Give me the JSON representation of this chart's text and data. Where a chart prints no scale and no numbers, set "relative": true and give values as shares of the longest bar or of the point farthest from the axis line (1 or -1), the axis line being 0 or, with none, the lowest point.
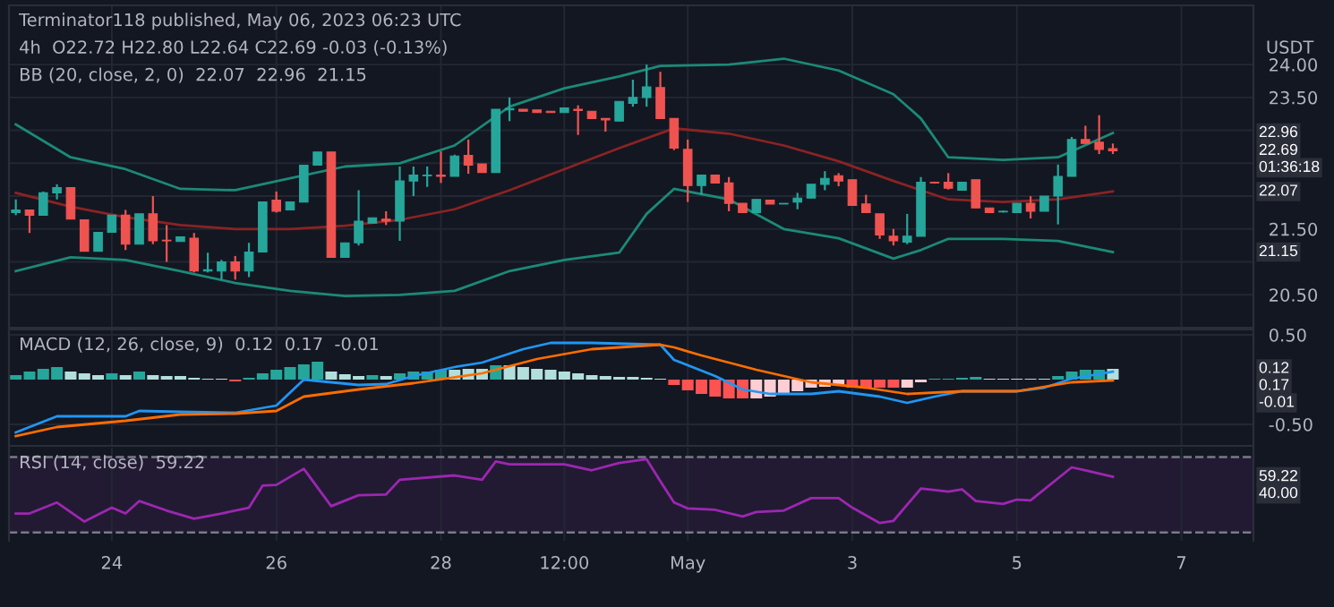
{
  "chart_data": [
    {
      "type": "candlestick",
      "title": "Terminator118 published, May 06, 2023 06:23 UTC",
      "ylabel": "USDT",
      "annotations": [
        "4h  O22.72 H22.80 L22.64 C22.69 -0.03 (-0.13%)",
        "BB (20, close, 2, 0)  22.07  22.96  21.15",
        {
          "text": "22.96",
          "y": 22.96
        },
        {
          "text": "22.69",
          "y": 22.69
        },
        "01:36:18",
        {
          "text": "22.07",
          "y": 22.07
        },
        {
          "text": "21.15",
          "y": 21.15
        }
      ],
      "x": [
        "2023-04-22T20:00",
        "2023-04-23T00:00",
        "2023-04-23T04:00",
        "2023-04-23T08:00",
        "2023-04-23T12:00",
        "2023-04-23T16:00",
        "2023-04-23T20:00",
        "2023-04-24T00:00",
        "2023-04-24T04:00",
        "2023-04-24T08:00",
        "2023-04-24T12:00",
        "2023-04-24T16:00",
        "2023-04-24T20:00",
        "2023-04-25T00:00",
        "2023-04-25T04:00",
        "2023-04-25T08:00",
        "2023-04-25T12:00",
        "2023-04-25T16:00",
        "2023-04-25T20:00",
        "2023-04-26T00:00",
        "2023-04-26T04:00",
        "2023-04-26T08:00",
        "2023-04-26T12:00",
        "2023-04-26T16:00",
        "2023-04-26T20:00",
        "2023-04-27T00:00",
        "2023-04-27T04:00",
        "2023-04-27T08:00",
        "2023-04-27T12:00",
        "2023-04-27T16:00",
        "2023-04-27T20:00",
        "2023-04-28T00:00",
        "2023-04-28T04:00",
        "2023-04-28T08:00",
        "2023-04-28T12:00",
        "2023-04-28T16:00",
        "2023-04-28T20:00",
        "2023-04-29T00:00",
        "2023-04-29T04:00",
        "2023-04-29T08:00",
        "2023-04-29T12:00",
        "2023-04-29T16:00",
        "2023-04-29T20:00",
        "2023-04-30T00:00",
        "2023-04-30T04:00",
        "2023-04-30T08:00",
        "2023-04-30T12:00",
        "2023-04-30T16:00",
        "2023-04-30T20:00",
        "2023-05-01T00:00",
        "2023-05-01T04:00",
        "2023-05-01T08:00",
        "2023-05-01T12:00",
        "2023-05-01T16:00",
        "2023-05-01T20:00",
        "2023-05-02T00:00",
        "2023-05-02T04:00",
        "2023-05-02T08:00",
        "2023-05-02T12:00",
        "2023-05-02T16:00",
        "2023-05-02T20:00",
        "2023-05-03T00:00",
        "2023-05-03T04:00",
        "2023-05-03T08:00",
        "2023-05-03T12:00",
        "2023-05-03T16:00",
        "2023-05-03T20:00",
        "2023-05-04T00:00",
        "2023-05-04T04:00",
        "2023-05-04T08:00",
        "2023-05-04T12:00",
        "2023-05-04T16:00",
        "2023-05-04T20:00",
        "2023-05-05T00:00",
        "2023-05-05T04:00",
        "2023-05-05T08:00",
        "2023-05-05T12:00",
        "2023-05-05T16:00",
        "2023-05-05T20:00",
        "2023-05-06T00:00",
        "2023-05-06T04:00"
      ],
      "ohlc": [
        [
          21.75,
          21.95,
          21.71,
          21.79
        ],
        [
          21.79,
          21.79,
          21.44,
          21.71
        ],
        [
          21.71,
          22.07,
          21.71,
          22.05
        ],
        [
          22.05,
          22.18,
          21.95,
          22.13
        ],
        [
          22.13,
          22.13,
          21.65,
          21.65
        ],
        [
          21.64,
          21.64,
          21.16,
          21.16
        ],
        [
          21.16,
          21.45,
          21.16,
          21.45
        ],
        [
          21.45,
          21.71,
          21.45,
          21.71
        ],
        [
          21.71,
          21.79,
          21.18,
          21.27
        ],
        [
          21.27,
          21.73,
          21.27,
          21.73
        ],
        [
          21.73,
          22.0,
          21.27,
          21.32
        ],
        [
          21.33,
          21.56,
          21.0,
          21.32
        ],
        [
          21.31,
          21.38,
          21.31,
          21.38
        ],
        [
          21.36,
          21.44,
          20.84,
          20.86
        ],
        [
          20.86,
          21.14,
          20.84,
          20.88
        ],
        [
          20.86,
          21.03,
          20.73,
          21.0
        ],
        [
          21.0,
          21.09,
          20.73,
          20.86
        ],
        [
          20.86,
          21.29,
          20.77,
          21.15
        ],
        [
          21.15,
          21.91,
          21.15,
          21.91
        ],
        [
          21.94,
          22.07,
          21.75,
          21.77
        ],
        [
          21.79,
          21.91,
          21.79,
          21.91
        ],
        [
          21.91,
          22.47,
          21.91,
          22.47
        ],
        [
          22.47,
          22.67,
          22.47,
          22.67
        ],
        [
          22.67,
          22.67,
          21.07,
          21.07
        ],
        [
          21.07,
          21.29,
          21.07,
          21.29
        ],
        [
          21.29,
          22.09,
          21.25,
          21.62
        ],
        [
          21.59,
          21.67,
          21.59,
          21.67
        ],
        [
          21.65,
          21.77,
          21.56,
          21.62
        ],
        [
          21.62,
          22.45,
          21.32,
          22.23
        ],
        [
          22.23,
          22.45,
          22.0,
          22.32
        ],
        [
          22.31,
          22.45,
          22.14,
          22.32
        ],
        [
          22.32,
          22.68,
          22.2,
          22.3
        ],
        [
          22.3,
          22.63,
          22.3,
          22.61
        ],
        [
          22.62,
          22.86,
          22.34,
          22.47
        ],
        [
          22.49,
          22.49,
          22.36,
          22.36
        ],
        [
          22.36,
          23.32,
          22.36,
          23.32
        ],
        [
          23.31,
          23.5,
          23.14,
          23.33
        ],
        [
          23.32,
          23.32,
          23.29,
          23.29
        ],
        [
          23.31,
          23.31,
          23.27,
          23.27
        ],
        [
          23.29,
          23.29,
          23.27,
          23.27
        ],
        [
          23.27,
          23.34,
          23.27,
          23.34
        ],
        [
          23.32,
          23.38,
          22.93,
          23.3
        ],
        [
          23.29,
          23.29,
          23.18,
          23.18
        ],
        [
          23.18,
          23.18,
          22.98,
          23.16
        ],
        [
          23.14,
          23.44,
          23.14,
          23.44
        ],
        [
          23.41,
          23.77,
          23.36,
          23.5
        ],
        [
          23.5,
          24.0,
          23.36,
          23.66
        ],
        [
          23.65,
          23.89,
          23.18,
          23.18
        ],
        [
          23.18,
          23.18,
          22.7,
          22.73
        ],
        [
          22.71,
          22.86,
          21.91,
          22.16
        ],
        [
          22.16,
          22.32,
          22.02,
          22.32
        ],
        [
          22.32,
          22.32,
          22.2,
          22.2
        ],
        [
          22.2,
          22.29,
          21.77,
          21.89
        ],
        [
          21.89,
          21.89,
          21.75,
          21.75
        ],
        [
          21.75,
          21.95,
          21.75,
          21.95
        ],
        [
          21.94,
          21.94,
          21.88,
          21.88
        ],
        [
          21.88,
          21.89,
          21.88,
          21.89
        ],
        [
          21.91,
          22.05,
          21.8,
          21.97
        ],
        [
          21.97,
          22.18,
          21.97,
          22.18
        ],
        [
          22.18,
          22.38,
          22.09,
          22.27
        ],
        [
          22.31,
          22.35,
          22.15,
          22.23
        ],
        [
          22.25,
          22.25,
          21.86,
          21.86
        ],
        [
          21.88,
          22.02,
          21.75,
          21.75
        ],
        [
          21.73,
          21.73,
          21.35,
          21.41
        ],
        [
          21.39,
          21.5,
          21.25,
          21.32
        ],
        [
          21.3,
          21.73,
          21.27,
          21.39
        ],
        [
          21.39,
          22.29,
          21.39,
          22.21
        ],
        [
          22.21,
          22.22,
          22.19,
          22.2
        ],
        [
          22.21,
          22.35,
          22.1,
          22.12
        ],
        [
          22.09,
          22.21,
          22.09,
          22.21
        ],
        [
          22.25,
          22.25,
          21.82,
          21.82
        ],
        [
          21.82,
          21.82,
          21.75,
          21.75
        ],
        [
          21.76,
          21.78,
          21.75,
          21.77
        ],
        [
          21.75,
          21.89,
          21.75,
          21.89
        ],
        [
          21.89,
          22.0,
          21.66,
          21.77
        ],
        [
          21.77,
          22.0,
          21.77,
          22.0
        ],
        [
          22.0,
          22.48,
          21.57,
          22.3
        ],
        [
          22.3,
          22.9,
          22.3,
          22.86
        ],
        [
          22.86,
          23.07,
          22.8,
          22.8
        ],
        [
          22.82,
          23.23,
          22.64,
          22.71
        ],
        [
          22.72,
          22.8,
          22.64,
          22.69
        ]
      ],
      "colors": [
        "#26a69a",
        "#ef5350",
        "#26a69a",
        "#26a69a",
        "#ef5350",
        "#ef5350",
        "#26a69a",
        "#26a69a",
        "#ef5350",
        "#26a69a",
        "#ef5350",
        "#ef5350",
        "#26a69a",
        "#ef5350",
        "#26a69a",
        "#26a69a",
        "#ef5350",
        "#26a69a",
        "#26a69a",
        "#ef5350",
        "#26a69a",
        "#26a69a",
        "#26a69a",
        "#ef5350",
        "#26a69a",
        "#26a69a",
        "#26a69a",
        "#ef5350",
        "#26a69a",
        "#26a69a",
        "#26a69a",
        "#ef5350",
        "#26a69a",
        "#ef5350",
        "#ef5350",
        "#26a69a",
        "#26a69a",
        "#ef5350",
        "#ef5350",
        "#ef5350",
        "#26a69a",
        "#ef5350",
        "#ef5350",
        "#ef5350",
        "#26a69a",
        "#26a69a",
        "#26a69a",
        "#ef5350",
        "#ef5350",
        "#ef5350",
        "#26a69a",
        "#ef5350",
        "#ef5350",
        "#ef5350",
        "#26a69a",
        "#ef5350",
        "#26a69a",
        "#26a69a",
        "#26a69a",
        "#26a69a",
        "#ef5350",
        "#ef5350",
        "#ef5350",
        "#ef5350",
        "#ef5350",
        "#26a69a",
        "#26a69a",
        "#ef5350",
        "#ef5350",
        "#26a69a",
        "#ef5350",
        "#ef5350",
        "#26a69a",
        "#26a69a",
        "#ef5350",
        "#26a69a",
        "#26a69a",
        "#26a69a",
        "#ef5350",
        "#ef5350",
        "#ef5350"
      ],
      "series": [
        {
          "type": "line",
          "color": "#1b8a78",
          "x": [
            "2023-04-22T20:00",
            "2023-04-23T12:00",
            "2023-04-24T04:00",
            "2023-04-24T20:00",
            "2023-04-25T12:00",
            "2023-04-26T04:00",
            "2023-04-26T20:00",
            "2023-04-27T12:00",
            "2023-04-28T04:00",
            "2023-04-28T20:00",
            "2023-04-29T12:00",
            "2023-04-30T04:00",
            "2023-04-30T16:00",
            "2023-05-01T12:00",
            "2023-05-02T04:00",
            "2023-05-02T20:00",
            "2023-05-03T12:00",
            "2023-05-03T20:00",
            "2023-05-04T04:00",
            "2023-05-04T20:00",
            "2023-05-05T12:00",
            "2023-05-06T04:00"
          ],
          "values": [
            23.09,
            22.59,
            22.41,
            22.11,
            22.09,
            22.27,
            22.45,
            22.5,
            22.77,
            23.36,
            23.64,
            23.82,
            23.98,
            24.0,
            24.09,
            23.91,
            23.55,
            23.18,
            22.59,
            22.55,
            22.59,
            22.96
          ]
        },
        {
          "type": "line",
          "color": "#8b2323",
          "x": [
            "2023-04-22T20:00",
            "2023-04-23T12:00",
            "2023-04-24T04:00",
            "2023-04-24T20:00",
            "2023-04-25T12:00",
            "2023-04-26T04:00",
            "2023-04-26T20:00",
            "2023-04-27T12:00",
            "2023-04-28T04:00",
            "2023-04-28T20:00",
            "2023-04-29T12:00",
            "2023-04-30T04:00",
            "2023-04-30T20:00",
            "2023-05-01T12:00",
            "2023-05-02T04:00",
            "2023-05-02T20:00",
            "2023-05-03T12:00",
            "2023-05-04T04:00",
            "2023-05-04T20:00",
            "2023-05-05T12:00",
            "2023-05-06T04:00"
          ],
          "values": [
            22.05,
            21.84,
            21.68,
            21.56,
            21.5,
            21.5,
            21.55,
            21.64,
            21.8,
            22.09,
            22.41,
            22.73,
            23.03,
            22.95,
            22.77,
            22.53,
            22.23,
            21.95,
            21.91,
            21.95,
            22.07
          ]
        },
        {
          "type": "line",
          "color": "#1b8a78",
          "x": [
            "2023-04-22T20:00",
            "2023-04-23T12:00",
            "2023-04-24T04:00",
            "2023-04-24T20:00",
            "2023-04-25T12:00",
            "2023-04-26T04:00",
            "2023-04-26T20:00",
            "2023-04-27T12:00",
            "2023-04-28T04:00",
            "2023-04-28T20:00",
            "2023-04-29T12:00",
            "2023-04-30T04:00",
            "2023-04-30T12:00",
            "2023-04-30T20:00",
            "2023-05-01T12:00",
            "2023-05-02T04:00",
            "2023-05-02T20:00",
            "2023-05-03T12:00",
            "2023-05-03T20:00",
            "2023-05-04T04:00",
            "2023-05-04T20:00",
            "2023-05-05T12:00",
            "2023-05-06T04:00"
          ],
          "values": [
            20.86,
            21.07,
            21.03,
            20.86,
            20.68,
            20.56,
            20.48,
            20.5,
            20.56,
            20.86,
            21.03,
            21.14,
            21.73,
            22.11,
            21.95,
            21.5,
            21.36,
            21.05,
            21.18,
            21.35,
            21.35,
            21.32,
            21.15
          ]
        }
      ],
      "xlim": [
        "2023-04-22T18:00",
        "2023-05-07T21:00"
      ],
      "ylim": [
        20.0,
        24.9
      ],
      "xticks": [
        {
          "value": "2023-04-24",
          "label": null
        },
        {
          "value": "2023-04-26",
          "label": null
        },
        {
          "value": "2023-04-28",
          "label": null
        },
        {
          "value": "2023-04-29T12:00",
          "label": null
        },
        {
          "value": "2023-05-01",
          "label": null
        },
        {
          "value": "2023-05-03",
          "label": null
        },
        {
          "value": "2023-05-05",
          "label": null
        },
        {
          "value": "2023-05-07",
          "label": null
        }
      ],
      "yticks": [
        {
          "value": 20.5,
          "label": "20.50"
        },
        {
          "value": 21.0,
          "label": null
        },
        {
          "value": 21.5,
          "label": "21.50"
        },
        {
          "value": 22.0,
          "label": null
        },
        {
          "value": 22.5,
          "label": null
        },
        {
          "value": 23.0,
          "label": null
        },
        {
          "value": 23.5,
          "label": "23.50"
        },
        {
          "value": 24.0,
          "label": "24.00"
        }
      ],
      "grid": true,
      "tick_labels": "y"
    },
    {
      "type": "bar",
      "title": "MACD (12, 26, close, 9)  0.12  0.17  -0.01",
      "annotations": [
        {
          "text": "0.12",
          "y": 0.12
        },
        "0.17",
        "-0.01"
      ],
      "x": [
        "2023-04-22T20:00",
        "2023-04-23T00:00",
        "2023-04-23T04:00",
        "2023-04-23T08:00",
        "2023-04-23T12:00",
        "2023-04-23T16:00",
        "2023-04-23T20:00",
        "2023-04-24T00:00",
        "2023-04-24T04:00",
        "2023-04-24T08:00",
        "2023-04-24T12:00",
        "2023-04-24T16:00",
        "2023-04-24T20:00",
        "2023-04-25T00:00",
        "2023-04-25T04:00",
        "2023-04-25T08:00",
        "2023-04-25T12:00",
        "2023-04-25T16:00",
        "2023-04-25T20:00",
        "2023-04-26T00:00",
        "2023-04-26T04:00",
        "2023-04-26T08:00",
        "2023-04-26T12:00",
        "2023-04-26T16:00",
        "2023-04-26T20:00",
        "2023-04-27T00:00",
        "2023-04-27T04:00",
        "2023-04-27T08:00",
        "2023-04-27T12:00",
        "2023-04-27T16:00",
        "2023-04-27T20:00",
        "2023-04-28T00:00",
        "2023-04-28T04:00",
        "2023-04-28T08:00",
        "2023-04-28T12:00",
        "2023-04-28T16:00",
        "2023-04-28T20:00",
        "2023-04-29T00:00",
        "2023-04-29T04:00",
        "2023-04-29T08:00",
        "2023-04-29T12:00",
        "2023-04-29T16:00",
        "2023-04-29T20:00",
        "2023-04-30T00:00",
        "2023-04-30T04:00",
        "2023-04-30T08:00",
        "2023-04-30T12:00",
        "2023-04-30T16:00",
        "2023-04-30T20:00",
        "2023-05-01T00:00",
        "2023-05-01T04:00",
        "2023-05-01T08:00",
        "2023-05-01T12:00",
        "2023-05-01T16:00",
        "2023-05-01T20:00",
        "2023-05-02T00:00",
        "2023-05-02T04:00",
        "2023-05-02T08:00",
        "2023-05-02T12:00",
        "2023-05-02T16:00",
        "2023-05-02T20:00",
        "2023-05-03T00:00",
        "2023-05-03T04:00",
        "2023-05-03T08:00",
        "2023-05-03T12:00",
        "2023-05-03T16:00",
        "2023-05-03T20:00",
        "2023-05-04T00:00",
        "2023-05-04T04:00",
        "2023-05-04T08:00",
        "2023-05-04T12:00",
        "2023-05-04T16:00",
        "2023-05-04T20:00",
        "2023-05-05T00:00",
        "2023-05-05T04:00",
        "2023-05-05T08:00",
        "2023-05-05T12:00",
        "2023-05-05T16:00",
        "2023-05-05T20:00",
        "2023-05-06T00:00",
        "2023-05-06T04:00"
      ],
      "values": [
        0.05,
        0.09,
        0.12,
        0.14,
        0.09,
        0.07,
        0.05,
        0.07,
        0.05,
        0.09,
        0.05,
        0.04,
        0.04,
        0.02,
        0.01,
        0.01,
        -0.02,
        0.02,
        0.07,
        0.11,
        0.14,
        0.17,
        0.2,
        0.09,
        0.06,
        0.04,
        0.05,
        0.04,
        0.07,
        0.09,
        0.09,
        0.11,
        0.11,
        0.12,
        0.12,
        0.16,
        0.16,
        0.14,
        0.12,
        0.11,
        0.09,
        0.07,
        0.05,
        0.04,
        0.03,
        0.03,
        0.02,
        0.01,
        -0.06,
        -0.12,
        -0.16,
        -0.19,
        -0.21,
        -0.21,
        -0.21,
        -0.19,
        -0.16,
        -0.13,
        -0.09,
        -0.08,
        -0.07,
        -0.09,
        -0.09,
        -0.09,
        -0.09,
        -0.09,
        -0.03,
        0.01,
        0.01,
        0.02,
        0.03,
        0.01,
        0.01,
        0.01,
        0.01,
        0.01,
        0.04,
        0.09,
        0.11,
        0.11,
        0.12
      ],
      "colors": [
        "#26a69a",
        "#26a69a",
        "#26a69a",
        "#26a69a",
        "#b2dfdb",
        "#b2dfdb",
        "#b2dfdb",
        "#26a69a",
        "#b2dfdb",
        "#26a69a",
        "#b2dfdb",
        "#b2dfdb",
        "#b2dfdb",
        "#b2dfdb",
        "#b2dfdb",
        "#b2dfdb",
        "#ff5252",
        "#26a69a",
        "#26a69a",
        "#26a69a",
        "#26a69a",
        "#26a69a",
        "#26a69a",
        "#b2dfdb",
        "#b2dfdb",
        "#b2dfdb",
        "#26a69a",
        "#b2dfdb",
        "#26a69a",
        "#26a69a",
        "#26a69a",
        "#26a69a",
        "#b2dfdb",
        "#b2dfdb",
        "#b2dfdb",
        "#26a69a",
        "#b2dfdb",
        "#b2dfdb",
        "#b2dfdb",
        "#b2dfdb",
        "#b2dfdb",
        "#b2dfdb",
        "#b2dfdb",
        "#b2dfdb",
        "#b2dfdb",
        "#b2dfdb",
        "#b2dfdb",
        "#b2dfdb",
        "#ff5252",
        "#ff5252",
        "#ff5252",
        "#ff5252",
        "#ff5252",
        "#ff5252",
        "#ffcdd2",
        "#ffcdd2",
        "#ffcdd2",
        "#ffcdd2",
        "#ffcdd2",
        "#ffcdd2",
        "#ffcdd2",
        "#ff5252",
        "#ff5252",
        "#ff5252",
        "#ff5252",
        "#ffcdd2",
        "#ffcdd2",
        "#26a69a",
        "#26a69a",
        "#26a69a",
        "#26a69a",
        "#b2dfdb",
        "#b2dfdb",
        "#b2dfdb",
        "#b2dfdb",
        "#b2dfdb",
        "#26a69a",
        "#26a69a",
        "#26a69a",
        "#26a69a",
        "#b2dfdb"
      ],
      "series": [
        {
          "type": "line",
          "color": "#2196f3",
          "x": [
            "2023-04-22T20:00",
            "2023-04-23T08:00",
            "2023-04-24T04:00",
            "2023-04-24T08:00",
            "2023-04-24T20:00",
            "2023-04-25T12:00",
            "2023-04-26T00:00",
            "2023-04-26T08:00",
            "2023-04-26T16:00",
            "2023-04-27T00:00",
            "2023-04-27T08:00",
            "2023-04-27T16:00",
            "2023-04-28T04:00",
            "2023-04-28T12:00",
            "2023-04-29T00:00",
            "2023-04-29T08:00",
            "2023-04-29T20:00",
            "2023-04-30T16:00",
            "2023-04-30T20:00",
            "2023-05-01T08:00",
            "2023-05-01T16:00",
            "2023-05-02T00:00",
            "2023-05-02T12:00",
            "2023-05-02T20:00",
            "2023-05-03T08:00",
            "2023-05-03T16:00",
            "2023-05-04T00:00",
            "2023-05-04T08:00",
            "2023-05-05T00:00",
            "2023-05-05T08:00",
            "2023-05-05T16:00",
            "2023-05-06T04:00"
          ],
          "values": [
            -0.59,
            -0.41,
            -0.41,
            -0.35,
            -0.36,
            -0.37,
            -0.29,
            0.0,
            -0.03,
            -0.06,
            -0.05,
            0.04,
            0.14,
            0.19,
            0.34,
            0.41,
            0.41,
            0.39,
            0.22,
            0.04,
            -0.11,
            -0.16,
            -0.16,
            -0.13,
            -0.19,
            -0.26,
            -0.19,
            -0.13,
            -0.13,
            -0.09,
            0.01,
            0.09
          ]
        },
        {
          "type": "line",
          "color": "#ff6d00",
          "x": [
            "2023-04-22T20:00",
            "2023-04-23T08:00",
            "2023-04-24T04:00",
            "2023-04-24T20:00",
            "2023-04-25T12:00",
            "2023-04-26T00:00",
            "2023-04-26T08:00",
            "2023-04-27T00:00",
            "2023-04-27T16:00",
            "2023-04-28T12:00",
            "2023-04-29T04:00",
            "2023-04-29T20:00",
            "2023-04-30T16:00",
            "2023-04-30T20:00",
            "2023-05-01T04:00",
            "2023-05-01T20:00",
            "2023-05-02T12:00",
            "2023-05-03T04:00",
            "2023-05-03T16:00",
            "2023-05-04T08:00",
            "2023-05-05T00:00",
            "2023-05-05T16:00",
            "2023-05-06T04:00"
          ],
          "values": [
            -0.63,
            -0.53,
            -0.46,
            -0.39,
            -0.38,
            -0.35,
            -0.19,
            -0.11,
            -0.04,
            0.07,
            0.23,
            0.34,
            0.39,
            0.36,
            0.27,
            0.11,
            -0.03,
            -0.09,
            -0.16,
            -0.13,
            -0.13,
            -0.03,
            -0.01
          ]
        }
      ],
      "xlim": [
        "2023-04-22T18:00",
        "2023-05-07T21:00"
      ],
      "ylim": [
        -0.74,
        0.56
      ],
      "xticks": [
        {
          "value": "2023-04-24",
          "label": null
        },
        {
          "value": "2023-04-26",
          "label": null
        },
        {
          "value": "2023-04-28",
          "label": null
        },
        {
          "value": "2023-04-29T12:00",
          "label": null
        },
        {
          "value": "2023-05-01",
          "label": null
        },
        {
          "value": "2023-05-03",
          "label": null
        },
        {
          "value": "2023-05-05",
          "label": null
        },
        {
          "value": "2023-05-07",
          "label": null
        }
      ],
      "yticks": [
        {
          "value": -0.5,
          "label": "-0.50"
        },
        {
          "value": 0.5,
          "label": "0.50"
        }
      ],
      "grid": true,
      "tick_labels": "y"
    },
    {
      "type": "line",
      "title": "RSI (14, close)  59.22",
      "relative": true,
      "annotations": [
        {
          "text": "59.22",
          "y": 0.76
        },
        "40.00"
      ],
      "series": [
        {
          "color": "#9c27b0",
          "x": [
            "2023-04-22T20:00",
            "2023-04-23T00:00",
            "2023-04-23T08:00",
            "2023-04-23T16:00",
            "2023-04-24T00:00",
            "2023-04-24T04:00",
            "2023-04-24T08:00",
            "2023-04-24T16:00",
            "2023-04-25T00:00",
            "2023-04-25T08:00",
            "2023-04-25T16:00",
            "2023-04-25T20:00",
            "2023-04-26T00:00",
            "2023-04-26T04:00",
            "2023-04-26T08:00",
            "2023-04-26T16:00",
            "2023-04-27T00:00",
            "2023-04-27T08:00",
            "2023-04-27T12:00",
            "2023-04-28T04:00",
            "2023-04-28T12:00",
            "2023-04-28T16:00",
            "2023-04-28T20:00",
            "2023-04-29T12:00",
            "2023-04-29T20:00",
            "2023-04-30T04:00",
            "2023-04-30T12:00",
            "2023-04-30T16:00",
            "2023-04-30T20:00",
            "2023-05-01T00:00",
            "2023-05-01T08:00",
            "2023-05-01T16:00",
            "2023-05-01T20:00",
            "2023-05-02T04:00",
            "2023-05-02T12:00",
            "2023-05-02T20:00",
            "2023-05-03T00:00",
            "2023-05-03T08:00",
            "2023-05-03T12:00",
            "2023-05-03T20:00",
            "2023-05-04T04:00",
            "2023-05-04T08:00",
            "2023-05-04T12:00",
            "2023-05-04T20:00",
            "2023-05-05T00:00",
            "2023-05-05T04:00",
            "2023-05-05T16:00",
            "2023-05-05T20:00",
            "2023-05-06T04:00"
          ],
          "values": [
            0.26,
            0.26,
            0.41,
            0.15,
            0.34,
            0.26,
            0.43,
            0.3,
            0.19,
            0.26,
            0.34,
            0.64,
            0.65,
            0.76,
            0.87,
            0.36,
            0.51,
            0.52,
            0.72,
            0.78,
            0.72,
            0.97,
            0.93,
            0.93,
            0.85,
            0.95,
            1.0,
            0.7,
            0.41,
            0.33,
            0.31,
            0.22,
            0.28,
            0.3,
            0.47,
            0.47,
            0.34,
            0.13,
            0.16,
            0.6,
            0.56,
            0.59,
            0.43,
            0.39,
            0.45,
            0.44,
            0.89,
            0.85,
            0.76
          ]
        }
      ],
      "ref_lines": [
        {
          "axis": "y",
          "value": 1.03,
          "color": "#787b86",
          "line_style": "dashed"
        },
        {
          "axis": "y",
          "value": 0,
          "color": "#787b86",
          "line_style": "dashed"
        }
      ],
      "bands": [
        {
          "axis": "y",
          "from": 0,
          "to": 1.03,
          "color": "#221a33"
        }
      ],
      "xlim": [
        "2023-04-22T18:00",
        "2023-05-07T21:00"
      ],
      "xticks": [
        {
          "value": "2023-04-24",
          "label": "24"
        },
        {
          "value": "2023-04-26",
          "label": "26"
        },
        {
          "value": "2023-04-28",
          "label": "28"
        },
        {
          "value": "2023-04-29T12:00",
          "label": "12:00"
        },
        {
          "value": "2023-05-01",
          "label": "May"
        },
        {
          "value": "2023-05-03",
          "label": "3"
        },
        {
          "value": "2023-05-05",
          "label": "5"
        },
        {
          "value": "2023-05-07",
          "label": "7"
        }
      ],
      "grid": "x"
    }
  ]
}
